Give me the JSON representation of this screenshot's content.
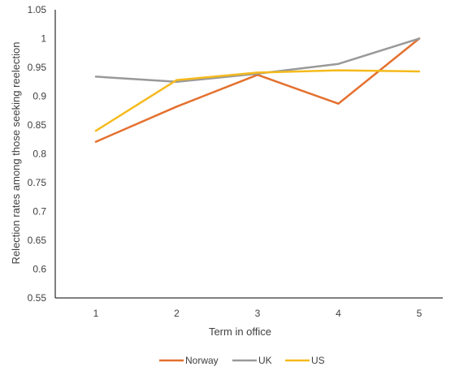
{
  "chart_data": {
    "type": "line",
    "title": "",
    "xlabel": "Term in office",
    "ylabel": "Relection rates among those seeking reelection",
    "categories": [
      "1",
      "2",
      "3",
      "4",
      "5"
    ],
    "ylim": [
      0.55,
      1.05
    ],
    "yticks": [
      "0.55",
      "0.6",
      "0.65",
      "0.7",
      "0.75",
      "0.8",
      "0.85",
      "0.9",
      "0.95",
      "1",
      "1.05"
    ],
    "grid": false,
    "legend_position": "bottom",
    "series": [
      {
        "name": "Norway",
        "color": "#E4702E",
        "values": [
          0.821,
          0.882,
          0.937,
          0.887,
          1.0
        ]
      },
      {
        "name": "UK",
        "color": "#999999",
        "values": [
          0.934,
          0.925,
          0.939,
          0.956,
          1.0
        ]
      },
      {
        "name": "US",
        "color": "#F5BA1C",
        "values": [
          0.84,
          0.928,
          0.941,
          0.945,
          0.943
        ]
      }
    ]
  }
}
